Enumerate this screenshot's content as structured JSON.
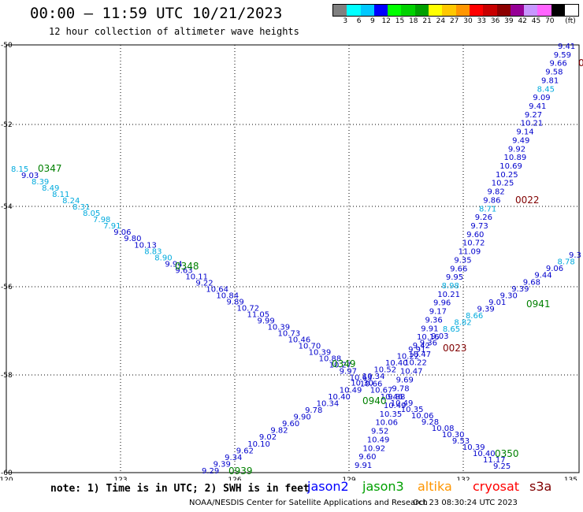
{
  "header": {
    "title": "00:00 – 11:59 UTC 10/21/2023",
    "subtitle": "12 hour collection of altimeter wave heights"
  },
  "legend": {
    "unit": "(ft)",
    "bins": [
      {
        "label": "3",
        "color": "#808080"
      },
      {
        "label": "6",
        "color": "#00ffff"
      },
      {
        "label": "9",
        "color": "#00c8ff"
      },
      {
        "label": "12",
        "color": "#0000ff"
      },
      {
        "label": "15",
        "color": "#00ff00"
      },
      {
        "label": "18",
        "color": "#00d200"
      },
      {
        "label": "21",
        "color": "#00a000"
      },
      {
        "label": "24",
        "color": "#ffff00"
      },
      {
        "label": "27",
        "color": "#ffc800"
      },
      {
        "label": "30",
        "color": "#ff9600"
      },
      {
        "label": "33",
        "color": "#ff0000"
      },
      {
        "label": "36",
        "color": "#c80000"
      },
      {
        "label": "39",
        "color": "#8c0000"
      },
      {
        "label": "42",
        "color": "#960096"
      },
      {
        "label": "45",
        "color": "#c896ff"
      },
      {
        "label": "70",
        "color": "#ff64ff"
      },
      {
        "label": "",
        "color": "#000000"
      }
    ]
  },
  "map": {
    "lon_ticks": [
      "120",
      "123",
      "126",
      "129",
      "132",
      "135"
    ],
    "lat_ticks": [
      "-50",
      "-52",
      "-54",
      "-56",
      "-58",
      "-60"
    ],
    "track_a": [
      "8.15",
      "9.03",
      "8.39",
      "8.49",
      "8.11",
      "8.24",
      "8.31",
      "8.05",
      "7.98",
      "7.91",
      "9.06",
      "9.80",
      "10.13",
      "8.83",
      "8.90",
      "9.94",
      "9.63",
      "10.11",
      "9.22",
      "10.64",
      "10.84",
      "9.89",
      "10.72",
      "11.05",
      "9.99",
      "10.39",
      "10.73",
      "10.46",
      "10.70",
      "10.39",
      "10.88",
      "10.27",
      "9.97",
      "10.63",
      "10.66",
      "10.67",
      "10.46",
      "10.49",
      "10.35",
      "10.06",
      "9.28",
      "10.08",
      "10.30",
      "9.53",
      "10.39",
      "10.40",
      "11.17",
      "9.25"
    ],
    "track_b": [
      "9.41",
      "9.59",
      "9.66",
      "9.58",
      "9.81",
      "8.45",
      "9.09",
      "9.41",
      "9.27",
      "10.21",
      "9.14",
      "9.49",
      "9.92",
      "10.89",
      "10.69",
      "10.25",
      "10.25",
      "9.82",
      "9.86",
      "8.71",
      "9.26",
      "9.73",
      "9.60",
      "10.72",
      "11.09",
      "9.35",
      "9.66",
      "9.95",
      "8.98",
      "10.21",
      "9.96",
      "9.17",
      "9.36",
      "9.91",
      "10.16",
      "9.42",
      "10.47",
      "10.22",
      "10.47",
      "9.69",
      "9.78",
      "9.88",
      "10.49",
      "10.35",
      "10.06",
      "9.52",
      "10.49",
      "10.92",
      "9.60",
      "9.91"
    ],
    "track_c": [
      "9.29",
      "9.39",
      "9.34",
      "9.62",
      "10.10",
      "9.02",
      "9.82",
      "9.60",
      "9.90",
      "9.78",
      "10.34",
      "10.40",
      "10.49",
      "10.30",
      "10.34",
      "10.52",
      "10.40",
      "10.22",
      "9.91",
      "9.36",
      "9.03",
      "8.65",
      "8.82",
      "8.66",
      "9.39",
      "9.01",
      "9.30",
      "9.39",
      "9.68",
      "9.44",
      "9.06",
      "8.78",
      "9.3"
    ],
    "time_labels": [
      {
        "text": "0347",
        "color": "#008000"
      },
      {
        "text": "0348",
        "color": "#008000"
      },
      {
        "text": "0349",
        "color": "#008000"
      },
      {
        "text": "0350",
        "color": "#008000"
      },
      {
        "text": "0022",
        "color": "#800000"
      },
      {
        "text": "0023",
        "color": "#800000"
      },
      {
        "text": "0939",
        "color": "#008000"
      },
      {
        "text": "0940",
        "color": "#008000"
      },
      {
        "text": "0941",
        "color": "#008000"
      },
      {
        "text": "0",
        "color": "#800000"
      }
    ]
  },
  "footer": {
    "note": "note: 1) Time is in UTC; 2) SWH is in feet",
    "satellites": [
      {
        "name": "jason2",
        "color": "#0000ff"
      },
      {
        "name": "jason3",
        "color": "#00a000"
      },
      {
        "name": "altika",
        "color": "#ff9600"
      },
      {
        "name": "cryosat",
        "color": "#ff0000"
      },
      {
        "name": "s3a",
        "color": "#800000"
      }
    ],
    "credit": "NOAA/NESDIS Center for Satellite Applications and Research",
    "timestamp": "Oct 23 08:30:24 UTC 2023"
  }
}
